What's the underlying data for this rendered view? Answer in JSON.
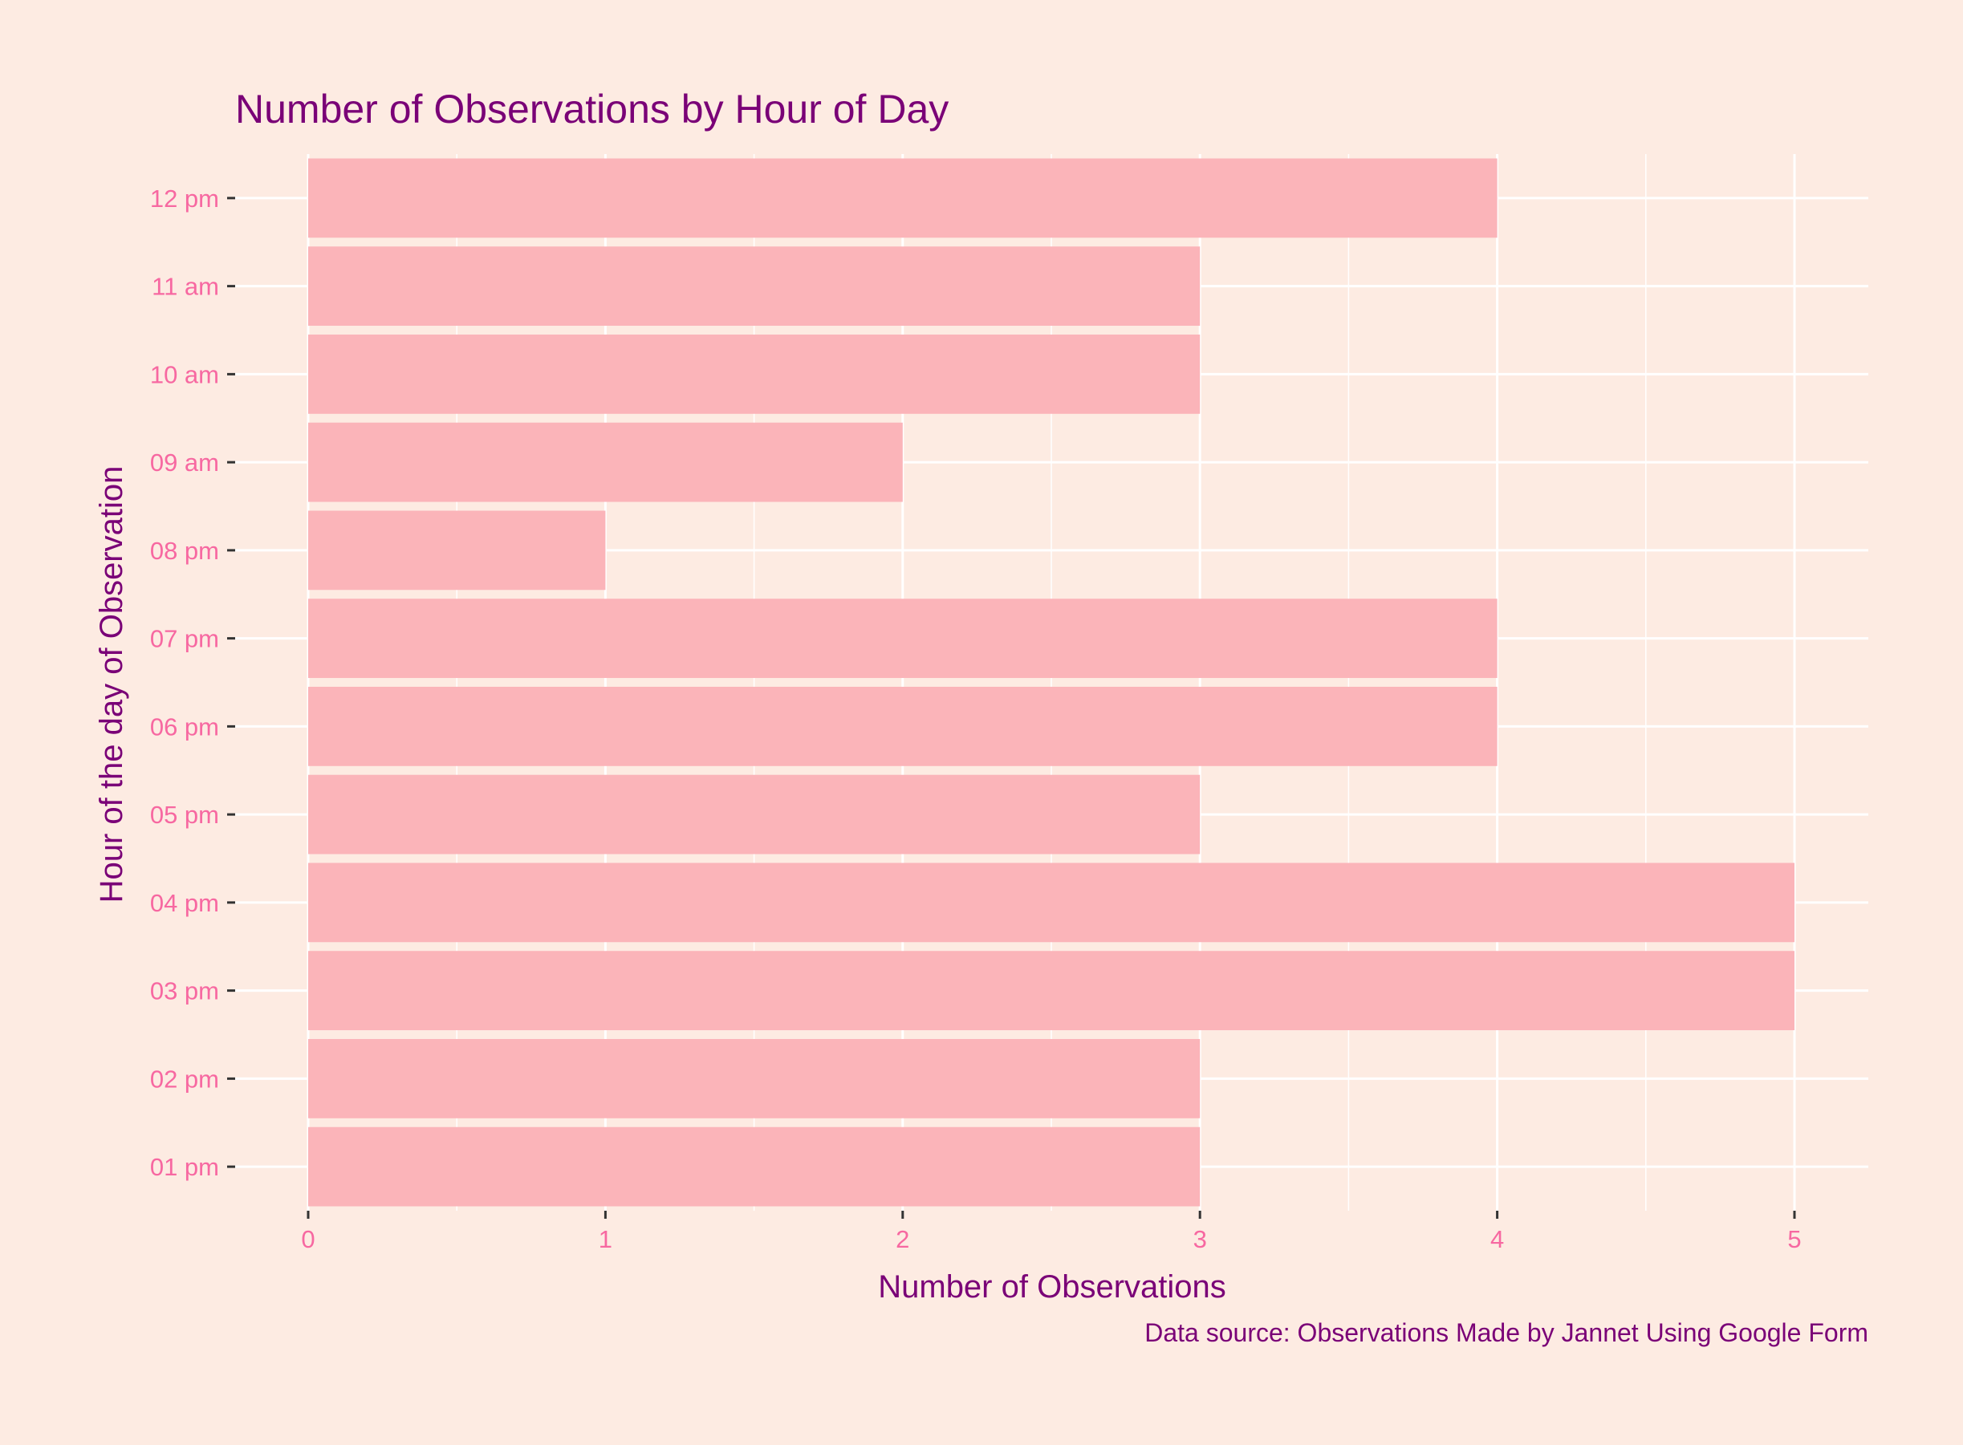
{
  "colors": {
    "background": "#fdebe2",
    "panel": "#fdebe2",
    "gridline": "#ffffff",
    "bar": "#fbb4b9",
    "title": "#7a0177",
    "tick_label": "#f768a1",
    "tick_mark": "#333333"
  },
  "chart_data": {
    "type": "bar",
    "orientation": "horizontal",
    "title": "Number of Observations by Hour of Day",
    "xlabel": "Number of Observations",
    "ylabel": "Hour of the day of Observation",
    "caption": "Data source: Observations Made by Jannet Using Google Form",
    "categories": [
      "01 pm",
      "02 pm",
      "03 pm",
      "04 pm",
      "05 pm",
      "06 pm",
      "07 pm",
      "08 pm",
      "09 am",
      "10 am",
      "11 am",
      "12 pm"
    ],
    "values": [
      3,
      3,
      5,
      5,
      3,
      4,
      4,
      1,
      2,
      3,
      3,
      4
    ],
    "xlim": [
      0,
      5
    ],
    "xticks": [
      0,
      1,
      2,
      3,
      4,
      5
    ],
    "grid": true,
    "legend": "none"
  }
}
